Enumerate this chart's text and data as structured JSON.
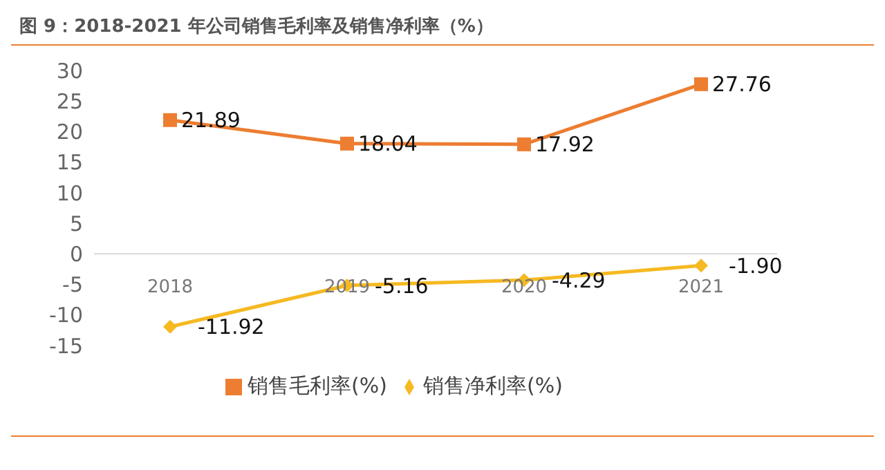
{
  "chart_data": {
    "type": "line",
    "title": "图 9：2018-2021 年公司销售毛利率及销售净利率（%）",
    "categories": [
      "2018",
      "2019",
      "2020",
      "2021"
    ],
    "series": [
      {
        "name": "销售毛利率(%)",
        "color": "#ed7d31",
        "values": [
          21.89,
          18.04,
          17.92,
          27.76
        ],
        "marker": "square",
        "value_labels": [
          "21.89",
          "18.04",
          "17.92",
          "27.76"
        ]
      },
      {
        "name": "销售净利率(%)",
        "color": "#f5b921",
        "values": [
          -11.92,
          -5.16,
          -4.29,
          -1.9
        ],
        "marker": "diamond",
        "value_labels": [
          "-11.92",
          "-5.16",
          "-4.29",
          "-1.90"
        ]
      }
    ],
    "ylim": [
      -15,
      30
    ],
    "yticks": [
      -15,
      -10,
      -5,
      0,
      5,
      10,
      15,
      20,
      25,
      30
    ],
    "legend": "bottom"
  }
}
